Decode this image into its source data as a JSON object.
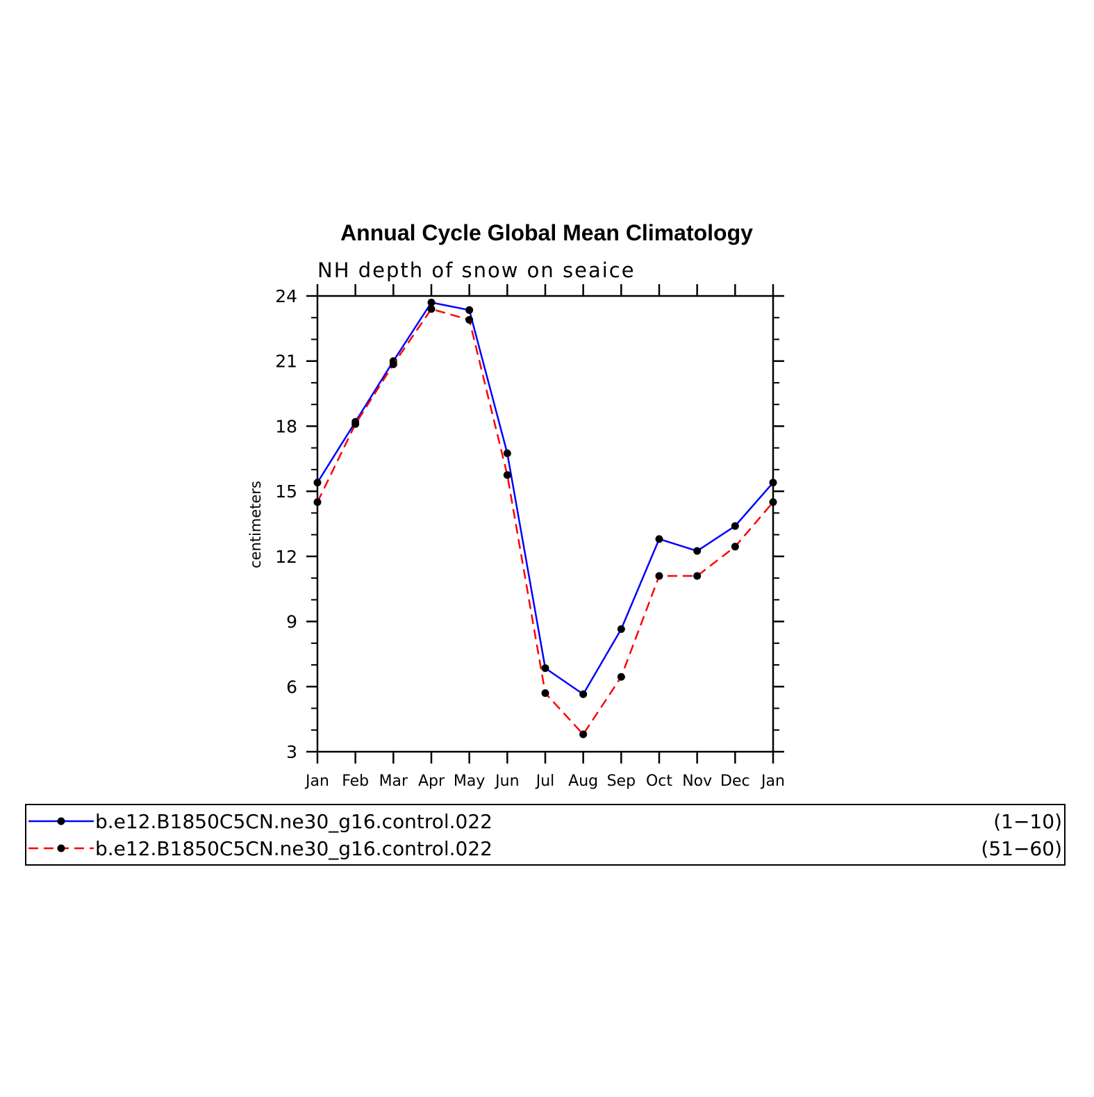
{
  "chart_data": {
    "type": "line",
    "title": "Annual Cycle Global Mean Climatology",
    "subtitle": "NH depth of snow on seaice",
    "xlabel": "",
    "ylabel": "centimeters",
    "categories": [
      "Jan",
      "Feb",
      "Mar",
      "Apr",
      "May",
      "Jun",
      "Jul",
      "Aug",
      "Sep",
      "Oct",
      "Nov",
      "Dec",
      "Jan"
    ],
    "ylim": [
      3,
      24
    ],
    "yticks": [
      3,
      6,
      9,
      12,
      15,
      18,
      21,
      24
    ],
    "grid": false,
    "legend_position": "bottom",
    "series": [
      {
        "name": "b.e12.B1850C5CN.ne30_g16.control.022",
        "years": "(1−10)",
        "color": "#0000ff",
        "line_style": "solid",
        "marker": "filled-circle",
        "values": [
          15.4,
          18.2,
          21.0,
          23.7,
          23.35,
          16.75,
          6.85,
          5.65,
          8.65,
          12.8,
          12.25,
          13.4,
          15.4
        ]
      },
      {
        "name": "b.e12.B1850C5CN.ne30_g16.control.022",
        "years": "(51−60)",
        "color": "#ff0000",
        "line_style": "dashed",
        "marker": "filled-circle",
        "values": [
          14.5,
          18.1,
          20.85,
          23.4,
          22.9,
          15.75,
          5.7,
          3.8,
          6.45,
          11.1,
          11.1,
          12.45,
          14.5
        ]
      }
    ]
  }
}
